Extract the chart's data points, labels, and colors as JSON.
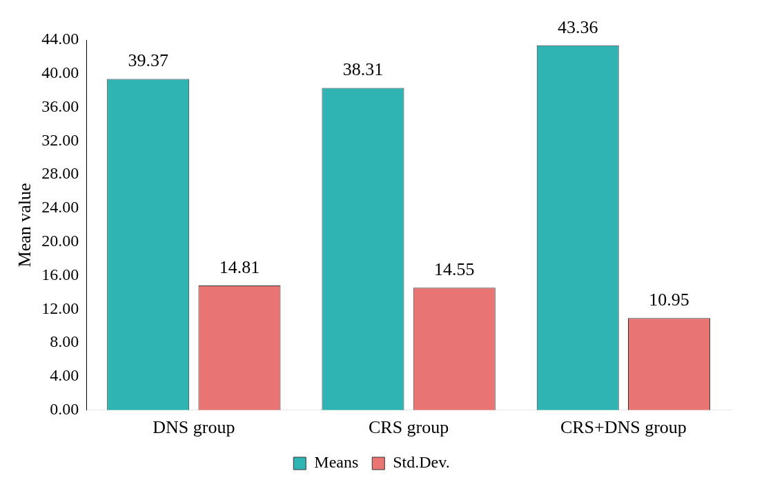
{
  "chart_data": {
    "type": "bar",
    "ylabel": "Mean value",
    "categories": [
      "DNS group",
      "CRS group",
      "CRS+DNS group"
    ],
    "series": [
      {
        "name": "Means",
        "color": "#2fb3b3",
        "values": [
          39.37,
          38.31,
          43.36
        ]
      },
      {
        "name": "Std.Dev.",
        "color": "#e87474",
        "values": [
          14.81,
          14.55,
          10.95
        ]
      }
    ],
    "ylim": [
      0,
      44
    ],
    "yticks": [
      {
        "value": 0,
        "label": "0.00"
      },
      {
        "value": 4,
        "label": "4.00"
      },
      {
        "value": 8,
        "label": "8.00"
      },
      {
        "value": 12,
        "label": "12.00"
      },
      {
        "value": 16,
        "label": "16.00"
      },
      {
        "value": 20,
        "label": "20.00"
      },
      {
        "value": 24,
        "label": "24.00"
      },
      {
        "value": 28,
        "label": "28.00"
      },
      {
        "value": 32,
        "label": "32.00"
      },
      {
        "value": 36,
        "label": "36.00"
      },
      {
        "value": 40,
        "label": "40.00"
      },
      {
        "value": 44,
        "label": "44.00"
      }
    ],
    "data_labels": true,
    "legend": "bottom"
  }
}
